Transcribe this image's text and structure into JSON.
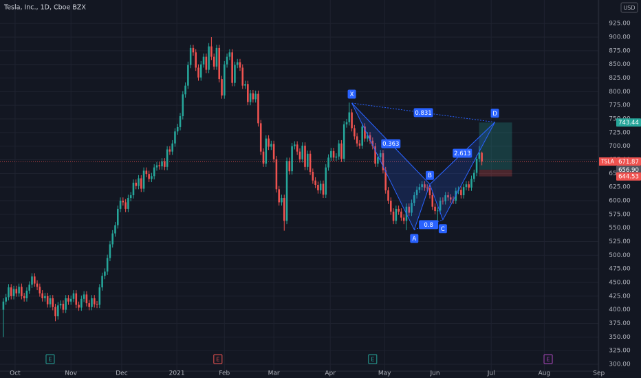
{
  "chart_data": {
    "type": "candlestick",
    "title": "Tesla, Inc., 1D, Cboe BZX",
    "currency": "USD",
    "up_color": "#26a69a",
    "down_color": "#ef5350",
    "open": [
      400,
      415,
      423,
      441,
      425,
      438,
      430,
      442,
      425,
      421,
      435,
      446,
      461,
      448,
      442,
      430,
      421,
      425,
      410,
      421,
      405,
      388,
      408,
      411,
      400,
      421,
      415,
      420,
      430,
      409,
      404,
      420,
      428,
      412,
      405,
      421,
      410,
      409,
      441,
      462,
      470,
      495,
      520,
      540,
      555,
      585,
      600,
      597,
      585,
      605,
      610,
      633,
      627,
      641,
      622,
      655,
      649,
      640,
      645,
      661,
      665,
      663,
      672,
      662,
      694,
      690,
      705,
      727,
      735,
      755,
      795,
      811,
      849,
      880,
      872,
      844,
      826,
      850,
      864,
      840,
      883,
      864,
      846,
      880,
      823,
      793,
      850,
      864,
      872,
      816,
      849,
      854,
      844,
      811,
      814,
      781,
      797,
      786,
      796,
      742,
      690,
      668,
      714,
      699,
      704,
      676,
      621,
      597,
      605,
      563,
      673,
      654,
      700,
      703,
      690,
      676,
      701,
      662,
      686,
      653,
      637,
      629,
      619,
      631,
      611,
      661,
      679,
      691,
      679,
      681,
      705,
      677,
      740,
      744,
      762,
      733,
      718,
      705,
      701,
      736,
      714,
      720,
      710,
      700,
      668,
      680,
      687,
      656,
      619,
      600,
      580,
      563,
      585,
      580,
      569,
      563,
      589,
      578,
      596,
      610,
      620,
      625,
      630,
      624,
      623,
      610,
      589,
      581,
      582,
      600,
      599,
      610,
      606,
      602,
      600,
      618,
      620,
      610,
      625,
      630,
      624,
      640,
      651,
      677,
      688
    ],
    "high": [
      421,
      429,
      447,
      447,
      444,
      444,
      448,
      448,
      431,
      441,
      452,
      467,
      467,
      454,
      448,
      436,
      431,
      431,
      427,
      427,
      411,
      414,
      417,
      417,
      427,
      427,
      426,
      436,
      436,
      415,
      426,
      434,
      434,
      418,
      427,
      427,
      416,
      447,
      468,
      476,
      501,
      526,
      546,
      561,
      591,
      606,
      606,
      603,
      611,
      616,
      639,
      639,
      647,
      647,
      661,
      661,
      655,
      651,
      667,
      671,
      671,
      678,
      678,
      700,
      700,
      711,
      733,
      741,
      761,
      801,
      817,
      855,
      886,
      886,
      878,
      850,
      856,
      870,
      870,
      889,
      900,
      870,
      886,
      886,
      829,
      856,
      870,
      878,
      878,
      855,
      860,
      860,
      850,
      820,
      820,
      803,
      803,
      802,
      802,
      748,
      696,
      720,
      720,
      710,
      710,
      682,
      627,
      611,
      611,
      679,
      679,
      706,
      709,
      709,
      696,
      707,
      707,
      692,
      692,
      659,
      643,
      635,
      637,
      637,
      667,
      685,
      697,
      697,
      687,
      711,
      711,
      746,
      750,
      780,
      768,
      739,
      724,
      711,
      742,
      742,
      726,
      726,
      716,
      706,
      686,
      693,
      693,
      662,
      625,
      606,
      586,
      591,
      591,
      586,
      575,
      595,
      595,
      602,
      616,
      626,
      631,
      636,
      636,
      630,
      629,
      616,
      595,
      588,
      606,
      606,
      616,
      616,
      612,
      608,
      624,
      626,
      626,
      631,
      636,
      636,
      646,
      657,
      683,
      700,
      690
    ],
    "low": [
      350,
      409,
      417,
      419,
      419,
      424,
      424,
      419,
      415,
      415,
      429,
      440,
      442,
      436,
      424,
      415,
      415,
      404,
      404,
      399,
      379,
      382,
      402,
      394,
      394,
      409,
      409,
      414,
      403,
      398,
      398,
      414,
      406,
      399,
      399,
      404,
      403,
      403,
      435,
      456,
      464,
      489,
      514,
      534,
      549,
      579,
      591,
      579,
      579,
      599,
      604,
      621,
      621,
      616,
      616,
      643,
      634,
      634,
      639,
      655,
      657,
      657,
      656,
      656,
      684,
      684,
      699,
      721,
      729,
      749,
      789,
      805,
      843,
      866,
      838,
      820,
      820,
      844,
      834,
      834,
      858,
      840,
      840,
      817,
      787,
      787,
      844,
      858,
      810,
      810,
      843,
      838,
      805,
      805,
      775,
      775,
      780,
      780,
      736,
      684,
      662,
      662,
      693,
      693,
      670,
      615,
      591,
      591,
      545,
      557,
      648,
      648,
      694,
      684,
      670,
      670,
      656,
      656,
      647,
      631,
      623,
      613,
      613,
      605,
      605,
      655,
      673,
      673,
      673,
      675,
      671,
      671,
      734,
      738,
      727,
      712,
      699,
      695,
      695,
      708,
      708,
      704,
      694,
      662,
      662,
      674,
      650,
      613,
      594,
      574,
      557,
      557,
      574,
      563,
      557,
      546,
      572,
      572,
      590,
      604,
      614,
      619,
      618,
      617,
      604,
      583,
      575,
      563,
      576,
      593,
      593,
      600,
      596,
      594,
      594,
      612,
      604,
      604,
      619,
      618,
      618,
      634,
      645,
      671,
      665
    ],
    "close": [
      415,
      423,
      441,
      425,
      438,
      430,
      442,
      425,
      421,
      435,
      446,
      461,
      448,
      442,
      430,
      421,
      425,
      410,
      421,
      405,
      388,
      408,
      411,
      400,
      421,
      415,
      420,
      430,
      409,
      404,
      420,
      428,
      412,
      405,
      421,
      410,
      409,
      441,
      462,
      470,
      495,
      520,
      540,
      555,
      585,
      600,
      597,
      585,
      605,
      610,
      633,
      627,
      641,
      622,
      655,
      649,
      640,
      645,
      661,
      665,
      663,
      672,
      662,
      694,
      690,
      705,
      727,
      735,
      755,
      795,
      811,
      849,
      880,
      872,
      844,
      826,
      850,
      864,
      840,
      883,
      864,
      846,
      880,
      823,
      793,
      850,
      864,
      872,
      816,
      849,
      854,
      844,
      811,
      814,
      781,
      797,
      786,
      796,
      742,
      690,
      668,
      714,
      699,
      704,
      676,
      621,
      597,
      605,
      563,
      673,
      654,
      700,
      703,
      690,
      676,
      701,
      662,
      686,
      653,
      637,
      629,
      619,
      631,
      611,
      661,
      679,
      691,
      679,
      681,
      705,
      677,
      740,
      744,
      762,
      733,
      718,
      705,
      701,
      736,
      714,
      720,
      710,
      700,
      668,
      680,
      687,
      656,
      619,
      600,
      580,
      563,
      585,
      580,
      569,
      563,
      589,
      578,
      596,
      610,
      620,
      625,
      630,
      624,
      623,
      610,
      589,
      581,
      582,
      600,
      599,
      610,
      606,
      602,
      600,
      618,
      620,
      610,
      625,
      630,
      624,
      640,
      651,
      677,
      688,
      671.87
    ],
    "xlim": [
      -1.3,
      228.8
    ],
    "ylim": [
      287.4,
      968.1
    ],
    "xticks": [
      {
        "value": 4.5,
        "label": "Oct"
      },
      {
        "value": 26,
        "label": "Nov"
      },
      {
        "value": 45.5,
        "label": "Dec"
      },
      {
        "value": 66.7,
        "label": "2021"
      },
      {
        "value": 85,
        "label": "Feb"
      },
      {
        "value": 104,
        "label": "Mar"
      },
      {
        "value": 125.7,
        "label": "Apr"
      },
      {
        "value": 146.6,
        "label": "May"
      },
      {
        "value": 166,
        "label": "Jun"
      },
      {
        "value": 187.6,
        "label": "Jul"
      },
      {
        "value": 208,
        "label": "Aug"
      },
      {
        "value": 229,
        "label": "Sep"
      }
    ],
    "yticks": [
      {
        "value": 300,
        "label": "300.00"
      },
      {
        "value": 325,
        "label": "325.00"
      },
      {
        "value": 350,
        "label": "350.00"
      },
      {
        "value": 375,
        "label": "375.00"
      },
      {
        "value": 400,
        "label": "400.00"
      },
      {
        "value": 425,
        "label": "425.00"
      },
      {
        "value": 450,
        "label": "450.00"
      },
      {
        "value": 475,
        "label": "475.00"
      },
      {
        "value": 500,
        "label": "500.00"
      },
      {
        "value": 525,
        "label": "525.00"
      },
      {
        "value": 550,
        "label": "550.00"
      },
      {
        "value": 575,
        "label": "575.00"
      },
      {
        "value": 600,
        "label": "600.00"
      },
      {
        "value": 625,
        "label": "625.00"
      },
      {
        "value": 650,
        "label": "650.00"
      },
      {
        "value": 675,
        "label": "675.00"
      },
      {
        "value": 700,
        "label": "700.00"
      },
      {
        "value": 725,
        "label": "725.00"
      },
      {
        "value": 750,
        "label": "750.00"
      },
      {
        "value": 775,
        "label": "775.00"
      },
      {
        "value": 800,
        "label": "800.00"
      },
      {
        "value": 825,
        "label": "825.00"
      },
      {
        "value": 850,
        "label": "850.00"
      },
      {
        "value": 875,
        "label": "875.00"
      },
      {
        "value": 900,
        "label": "900.00"
      },
      {
        "value": 925,
        "label": "925.00"
      }
    ],
    "grid": true,
    "price_label": {
      "symbol": "TSLA",
      "value": 671.87,
      "color": "#ef5350"
    },
    "position": {
      "target": 743.44,
      "entry": {
        "value": 656.9,
        "label": "656.90"
      },
      "stop": 644.53,
      "profit_color": "#26a69a",
      "loss_color": "#ef5350"
    },
    "pattern": {
      "color": "#2962ff",
      "points": [
        {
          "label": "X",
          "x": 134,
          "y": 779
        },
        {
          "label": "A",
          "x": 158,
          "y": 547
        },
        {
          "label": "B",
          "x": 164,
          "y": 630
        },
        {
          "label": "C",
          "x": 169,
          "y": 565
        },
        {
          "label": "D",
          "x": 189,
          "y": 744
        }
      ],
      "ratios": [
        0.831,
        0.363,
        0.8,
        2.613
      ]
    },
    "events": [
      {
        "x": 18,
        "label": "E",
        "color": "#26a69a"
      },
      {
        "x": 82.5,
        "label": "E",
        "color": "#ef5350"
      },
      {
        "x": 142,
        "label": "E",
        "color": "#26a69a"
      },
      {
        "x": 209.5,
        "label": "E",
        "color": "#ab47bc"
      }
    ]
  }
}
